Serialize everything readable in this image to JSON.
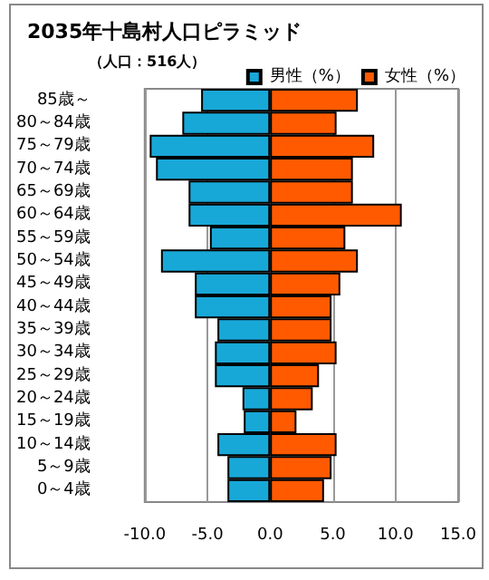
{
  "chart_data": {
    "type": "bar",
    "orientation": "horizontal",
    "title": "2035年十島村人口ピラミッド",
    "subtitle": "（人口：516人）",
    "categories": [
      "85歳～",
      "80～84歳",
      "75～79歳",
      "70～74歳",
      "65～69歳",
      "60～64歳",
      "55～59歳",
      "50～54歳",
      "45～49歳",
      "40～44歳",
      "35～39歳",
      "30～34歳",
      "25～29歳",
      "20～24歳",
      "15～19歳",
      "10～14歳",
      "5～9歳",
      "0～4歳"
    ],
    "series": [
      {
        "name": "男性（%）",
        "color": "#18a8d8",
        "values": [
          -5.5,
          -7.0,
          -9.6,
          -9.1,
          -6.5,
          -6.5,
          -4.8,
          -8.7,
          -6.0,
          -6.0,
          -4.2,
          -4.4,
          -4.4,
          -2.2,
          -2.1,
          -4.2,
          -3.4,
          -3.4
        ]
      },
      {
        "name": "女性（%）",
        "color": "#ff5a00",
        "values": [
          7.0,
          5.3,
          8.3,
          6.6,
          6.6,
          10.5,
          6.0,
          7.0,
          5.6,
          4.9,
          4.9,
          5.3,
          3.9,
          3.4,
          2.1,
          5.3,
          4.9,
          4.3
        ]
      }
    ],
    "xlim": [
      -10,
      15
    ],
    "xticks": [
      {
        "value": -10,
        "label": "-10.0"
      },
      {
        "value": -5,
        "label": "-5.0"
      },
      {
        "value": 0,
        "label": "0.0"
      },
      {
        "value": 5,
        "label": "5.0"
      },
      {
        "value": 10,
        "label": "10.0"
      },
      {
        "value": 15,
        "label": "15.0"
      }
    ],
    "grid": "x",
    "legend": "top right",
    "stacked": true
  }
}
